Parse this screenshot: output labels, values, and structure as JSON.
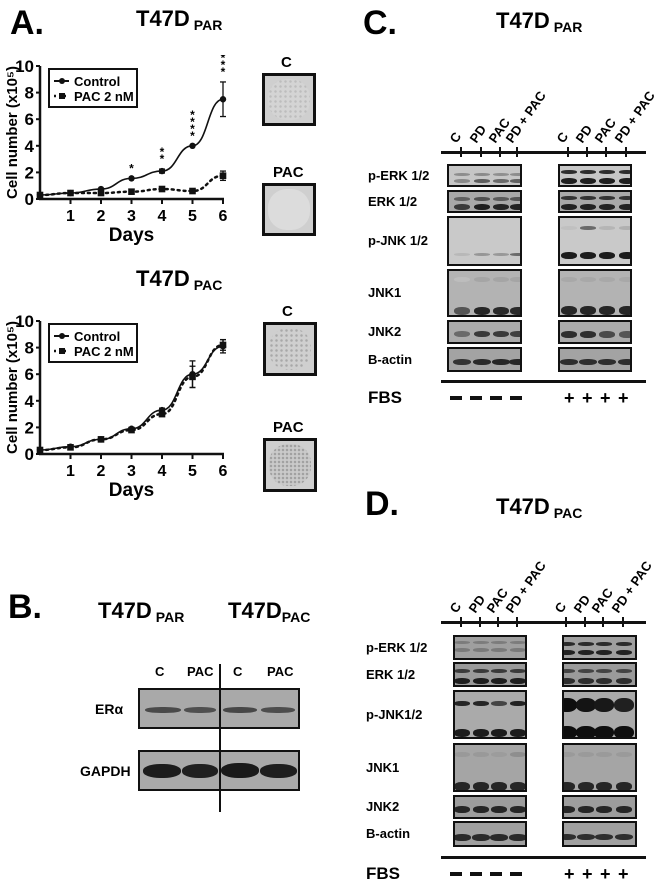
{
  "panelA": {
    "letter": "A.",
    "top": {
      "title": "T47D",
      "sub": "PAR",
      "colony_labels": [
        "C",
        "PAC"
      ]
    },
    "bottom": {
      "title": "T47D",
      "sub": "PAC",
      "colony_labels": [
        "C",
        "PAC"
      ]
    }
  },
  "panelB": {
    "letter": "B.",
    "title_left": "T47D",
    "sub_left": "PAR",
    "title_right": "T47D",
    "sub_right": "PAC",
    "lanes": [
      "C",
      "PAC",
      "C",
      "PAC"
    ],
    "rows": [
      "ERα",
      "GAPDH"
    ]
  },
  "panelC": {
    "letter": "C.",
    "title": "T47D",
    "sub": "PAR",
    "lanes": [
      "C",
      "PD",
      "PAC",
      "PD + PAC",
      "C",
      "PD",
      "PAC",
      "PD + PAC"
    ],
    "rows": [
      "p-ERK 1/2",
      "ERK 1/2",
      "p-JNK 1/2",
      "JNK1",
      "JNK2",
      "B-actin"
    ],
    "fbs_label": "FBS",
    "fbs": [
      "−",
      "−",
      "−",
      "−",
      "+",
      "+",
      "+",
      "+"
    ]
  },
  "panelD": {
    "letter": "D.",
    "title": "T47D",
    "sub": "PAC",
    "lanes": [
      "C",
      "PD",
      "PAC",
      "PD + PAC",
      "C",
      "PD",
      "PAC",
      "PD + PAC"
    ],
    "rows": [
      "p-ERK 1/2",
      "ERK 1/2",
      "p-JNK1/2",
      "JNK1",
      "JNK2",
      "B-actin"
    ],
    "fbs_label": "FBS",
    "fbs": [
      "−",
      "−",
      "−",
      "−",
      "+",
      "+",
      "+",
      "+"
    ]
  },
  "chart_data": [
    {
      "type": "line",
      "title": "T47D PAR",
      "xlabel": "Days",
      "ylabel": "Cell number (x10⁵)",
      "x": [
        0,
        1,
        2,
        3,
        4,
        5,
        6
      ],
      "xticks": [
        "1",
        "2",
        "3",
        "4",
        "5",
        "6"
      ],
      "yticks": [
        "0",
        "2",
        "4",
        "6",
        "8",
        "10"
      ],
      "ylim": [
        0,
        10
      ],
      "xlim": [
        0,
        6
      ],
      "legend_position": "top-left",
      "series": [
        {
          "name": "Control",
          "style": "solid",
          "marker": "circle",
          "values": [
            0.3,
            0.45,
            0.75,
            1.55,
            2.1,
            4.0,
            7.5
          ],
          "errors": [
            0.05,
            0.05,
            0.1,
            0.1,
            0.15,
            0.1,
            1.3
          ]
        },
        {
          "name": "PAC 2 nM",
          "style": "dotted",
          "marker": "square",
          "values": [
            0.3,
            0.45,
            0.45,
            0.55,
            0.75,
            0.6,
            1.75
          ],
          "errors": [
            0.05,
            0.05,
            0.05,
            0.05,
            0.05,
            0.05,
            0.35
          ]
        }
      ],
      "annotations": [
        {
          "x": 3,
          "text": "*"
        },
        {
          "x": 4,
          "text": "**"
        },
        {
          "x": 5,
          "text": "****"
        },
        {
          "x": 6,
          "text": "****"
        }
      ]
    },
    {
      "type": "line",
      "title": "T47D PAC",
      "xlabel": "Days",
      "ylabel": "Cell number (x10⁵)",
      "x": [
        0,
        1,
        2,
        3,
        4,
        5,
        6
      ],
      "xticks": [
        "1",
        "2",
        "3",
        "4",
        "5",
        "6"
      ],
      "yticks": [
        "0",
        "2",
        "4",
        "6",
        "8",
        "10"
      ],
      "ylim": [
        0,
        10
      ],
      "xlim": [
        0,
        6
      ],
      "legend_position": "top-left",
      "series": [
        {
          "name": "Control",
          "style": "solid",
          "marker": "circle",
          "values": [
            0.3,
            0.55,
            1.1,
            1.9,
            3.3,
            6.0,
            8.1
          ],
          "errors": [
            0.05,
            0.05,
            0.1,
            0.1,
            0.15,
            1.0,
            0.5
          ]
        },
        {
          "name": "PAC 2 nM",
          "style": "dotted",
          "marker": "square",
          "values": [
            0.3,
            0.5,
            1.1,
            1.8,
            3.0,
            5.8,
            8.2
          ],
          "errors": [
            0.05,
            0.05,
            0.1,
            0.1,
            0.15,
            0.8,
            0.4
          ]
        }
      ],
      "annotations": []
    }
  ]
}
